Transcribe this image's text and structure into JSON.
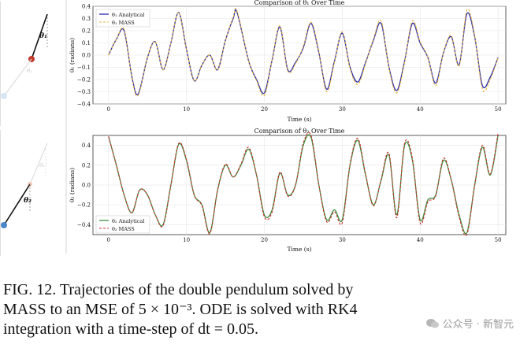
{
  "chart_data": [
    {
      "type": "line",
      "title": "Comparison of θ₁ Over Time",
      "xlabel": "Time (s)",
      "ylabel": "θ₁ (radians)",
      "xlim": [
        -2,
        51
      ],
      "ylim": [
        -0.4,
        0.4
      ],
      "xticks": [
        "0",
        "10",
        "20",
        "30",
        "40",
        "50"
      ],
      "yticks": [
        "0.4",
        "0.3",
        "0.2",
        "0.1",
        "0.0",
        "−0.1",
        "−0.2",
        "−0.3",
        "−0.4"
      ],
      "legend_position": "top-left",
      "grid": true,
      "series": [
        {
          "name": "θ₁ Analytical",
          "style": "solid",
          "color": "#2a2aa8"
        },
        {
          "name": "θ₁ MASS",
          "style": "dashed",
          "color": "#e5b43a"
        }
      ],
      "x": [
        0,
        1,
        2,
        3,
        3.8,
        5,
        6,
        7,
        8,
        9,
        10,
        11,
        12,
        13,
        14,
        15,
        16,
        16.5,
        18,
        19,
        20,
        21,
        22,
        23,
        24,
        25,
        26,
        27,
        28,
        29,
        30,
        31,
        32,
        33,
        34,
        35,
        36,
        37,
        38,
        39,
        40,
        41,
        42,
        43,
        44,
        45,
        46,
        47,
        48,
        49,
        50
      ],
      "analytical": [
        0.0,
        0.13,
        0.2,
        -0.18,
        -0.32,
        -0.02,
        0.11,
        -0.12,
        0.1,
        0.35,
        0.05,
        -0.21,
        -0.08,
        0.0,
        -0.12,
        0.12,
        0.3,
        0.35,
        -0.05,
        -0.2,
        -0.31,
        -0.04,
        0.23,
        -0.12,
        -0.06,
        0.06,
        0.26,
        0.02,
        -0.28,
        -0.05,
        0.18,
        -0.1,
        -0.22,
        -0.06,
        0.12,
        0.26,
        -0.1,
        -0.29,
        -0.05,
        0.26,
        0.1,
        -0.02,
        -0.23,
        0.02,
        0.15,
        -0.08,
        0.34,
        0.15,
        -0.25,
        -0.18,
        -0.02
      ],
      "mass": [
        0.0,
        0.13,
        0.21,
        -0.19,
        -0.33,
        -0.02,
        0.11,
        -0.12,
        0.1,
        0.35,
        0.05,
        -0.21,
        -0.08,
        0.0,
        -0.12,
        0.12,
        0.31,
        0.36,
        -0.05,
        -0.21,
        -0.33,
        -0.04,
        0.24,
        -0.13,
        -0.07,
        0.07,
        0.27,
        0.03,
        -0.3,
        -0.06,
        0.19,
        -0.11,
        -0.24,
        -0.07,
        0.13,
        0.28,
        -0.11,
        -0.31,
        -0.06,
        0.28,
        0.11,
        -0.02,
        -0.25,
        0.02,
        0.16,
        -0.09,
        0.37,
        0.16,
        -0.28,
        -0.2,
        -0.02
      ]
    },
    {
      "type": "line",
      "title": "Comparison of θ₂ Over Time",
      "xlabel": "Time (s)",
      "ylabel": "θ₂ (radians)",
      "xlim": [
        -2,
        51
      ],
      "ylim": [
        -0.5,
        0.5
      ],
      "xticks": [
        "0",
        "10",
        "20",
        "30",
        "40",
        "50"
      ],
      "yticks": [
        "0.4",
        "0.2",
        "0.0",
        "−0.2",
        "−0.4"
      ],
      "legend_position": "bottom-left",
      "grid": true,
      "series": [
        {
          "name": "θ₂ Analytical",
          "style": "solid",
          "color": "#3f8f3f"
        },
        {
          "name": "θ₂ MASS",
          "style": "dashed",
          "color": "#c83030"
        }
      ],
      "x": [
        0,
        1,
        2,
        3,
        4,
        5,
        6,
        7,
        8,
        9,
        10,
        11,
        12,
        13,
        14,
        15,
        16,
        17,
        18,
        19,
        20,
        21,
        22,
        23,
        24,
        25,
        26,
        27,
        28,
        29,
        30,
        31,
        32,
        33,
        34,
        35,
        36,
        37,
        38,
        39,
        40,
        41,
        42,
        43,
        44,
        45,
        46,
        47,
        48,
        49,
        50
      ],
      "analytical": [
        0.49,
        0.2,
        -0.1,
        -0.28,
        -0.05,
        -0.1,
        -0.3,
        -0.4,
        0.0,
        0.41,
        0.25,
        -0.1,
        -0.2,
        -0.48,
        -0.05,
        0.2,
        0.08,
        0.2,
        0.36,
        0.1,
        -0.3,
        -0.25,
        0.12,
        -0.1,
        0.0,
        0.4,
        0.48,
        0.0,
        -0.35,
        -0.25,
        -0.35,
        0.2,
        0.45,
        0.1,
        -0.2,
        0.05,
        0.3,
        -0.3,
        0.4,
        0.25,
        -0.35,
        -0.15,
        -0.1,
        0.25,
        0.05,
        -0.3,
        -0.48,
        0.0,
        0.38,
        0.1,
        0.5
      ],
      "mass": [
        0.49,
        0.2,
        -0.1,
        -0.28,
        -0.05,
        -0.1,
        -0.3,
        -0.41,
        0.0,
        0.42,
        0.26,
        -0.1,
        -0.21,
        -0.49,
        -0.05,
        0.21,
        0.08,
        0.21,
        0.38,
        0.1,
        -0.32,
        -0.27,
        0.13,
        -0.11,
        0.0,
        0.42,
        0.5,
        0.0,
        -0.37,
        -0.27,
        -0.38,
        0.21,
        0.47,
        0.11,
        -0.21,
        0.06,
        0.32,
        -0.33,
        0.42,
        0.27,
        -0.38,
        -0.17,
        -0.11,
        0.27,
        0.05,
        -0.32,
        -0.5,
        0.0,
        0.4,
        0.11,
        0.52
      ]
    }
  ],
  "pendulum_labels": {
    "top_theta": "θ₁",
    "top_theta_faint": "θ₂",
    "bottom_theta": "θ₂",
    "bottom_theta_faint": "θ₁"
  },
  "caption": {
    "line1": "FIG. 12.    Trajectories of the double pendulum solved by",
    "line2": "MASS to an MSE of 5 × 10⁻³.  ODE is solved with RK4",
    "line3": "integration with a time-step of dt = 0.05."
  },
  "watermark": {
    "text": "公众号 · 新智元"
  }
}
